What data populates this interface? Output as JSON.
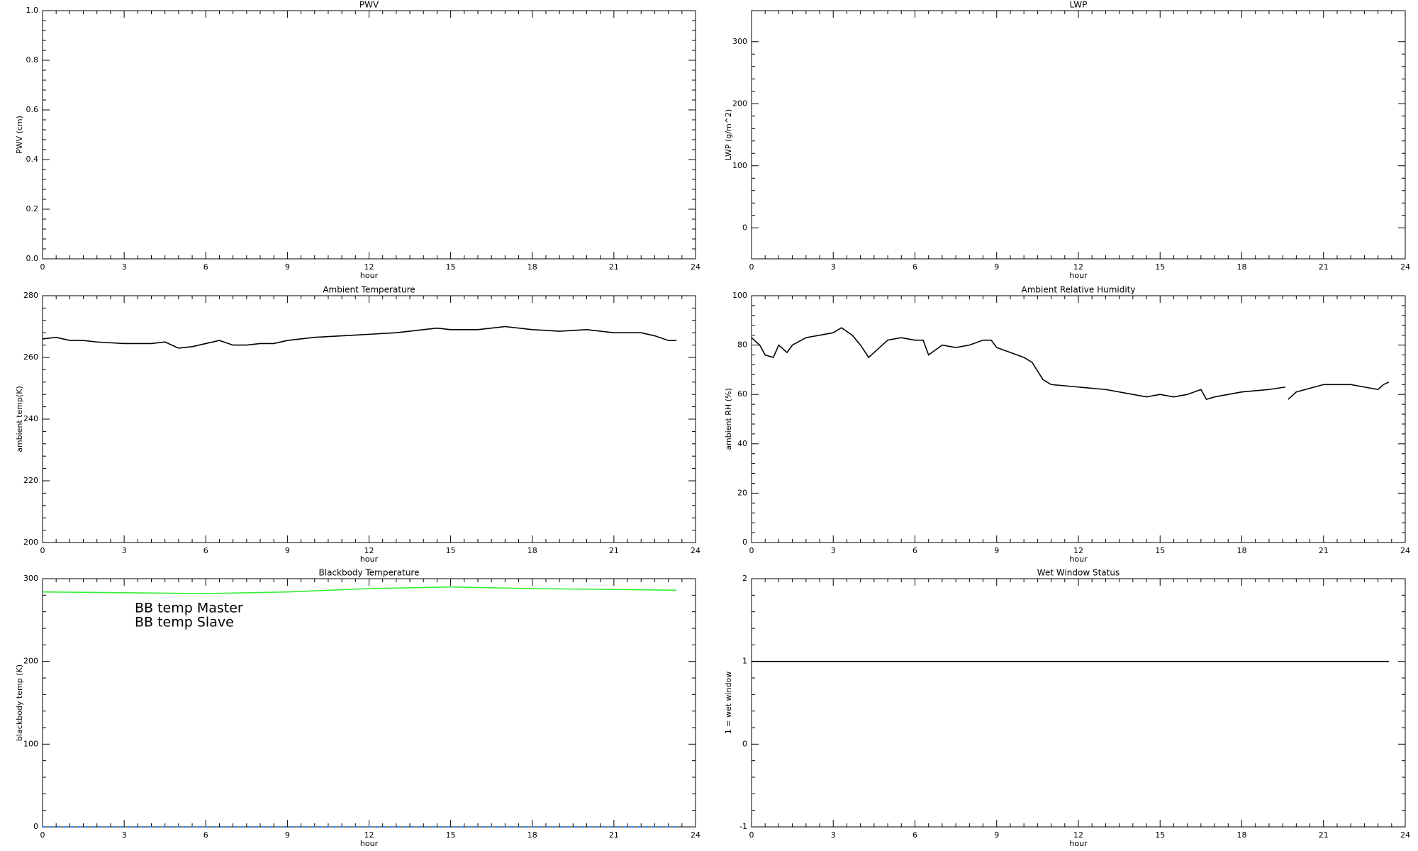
{
  "chart_data": [
    {
      "type": "line",
      "title": "PWV",
      "ylabel": "PWV (cm)",
      "xlabel": "hour",
      "xlim": [
        0,
        24
      ],
      "xticks": [
        0,
        3,
        6,
        9,
        12,
        15,
        18,
        21,
        24
      ],
      "ylim": [
        0,
        1
      ],
      "yticks": [
        {
          "value": 0,
          "label": "0.0"
        },
        0.2,
        0.4,
        0.6,
        0.8,
        {
          "value": 1,
          "label": "1.0"
        }
      ]
    },
    {
      "type": "line",
      "title": "LWP",
      "ylabel": "LWP (g/m^2)",
      "xlabel": "hour",
      "xlim": [
        0,
        24
      ],
      "xticks": [
        0,
        3,
        6,
        9,
        12,
        15,
        18,
        21,
        24
      ],
      "ylim": [
        -50,
        350
      ],
      "yticks": [
        0,
        100,
        200,
        300
      ]
    },
    {
      "type": "line",
      "title": "Ambient Temperature",
      "ylabel": "ambient temp(K)",
      "xlabel": "hour",
      "xlim": [
        0,
        24
      ],
      "xticks": [
        0,
        3,
        6,
        9,
        12,
        15,
        18,
        21,
        24
      ],
      "ylim": [
        200,
        280
      ],
      "yticks": [
        200,
        220,
        240,
        260,
        280
      ],
      "x": [
        0,
        0.5,
        1,
        1.5,
        2,
        3,
        4,
        4.5,
        5,
        5.5,
        6,
        6.5,
        7,
        7.5,
        8,
        8.5,
        9,
        10,
        11,
        12,
        13,
        14,
        14.5,
        15,
        16,
        16.5,
        17,
        18,
        19,
        20,
        21,
        22,
        22.5,
        23,
        23.3
      ],
      "series": [
        {
          "color": "#000000",
          "values": [
            266,
            266.5,
            265.5,
            265.5,
            265,
            264.5,
            264.5,
            265,
            263,
            263.5,
            264.5,
            265.5,
            264,
            264,
            264.5,
            264.5,
            265.5,
            266.5,
            267,
            267.5,
            268,
            269,
            269.5,
            269,
            269,
            269.5,
            270,
            269,
            268.5,
            269,
            268,
            268,
            267,
            265.5,
            265.5
          ]
        }
      ]
    },
    {
      "type": "line",
      "title": "Ambient Relative Humidity",
      "ylabel": "ambient RH (%)",
      "xlabel": "hour",
      "xlim": [
        0,
        24
      ],
      "xticks": [
        0,
        3,
        6,
        9,
        12,
        15,
        18,
        21,
        24
      ],
      "ylim": [
        0,
        100
      ],
      "yticks": [
        0,
        20,
        40,
        60,
        80,
        100
      ],
      "x": [
        0,
        0.3,
        0.5,
        0.8,
        1,
        1.3,
        1.5,
        2,
        3,
        3.3,
        3.7,
        4,
        4.3,
        4.7,
        5,
        5.5,
        6,
        6.3,
        6.5,
        7,
        7.5,
        8,
        8.5,
        8.8,
        9,
        9.5,
        10,
        10.3,
        10.7,
        11,
        12,
        13,
        14,
        14.5,
        15,
        15.5,
        16,
        16.5,
        16.7,
        17,
        18,
        19,
        19.6,
        19.65,
        19.7,
        20,
        21,
        22,
        22.5,
        23,
        23.2,
        23.4
      ],
      "series": [
        {
          "color": "#000000",
          "values": [
            83,
            80,
            76,
            75,
            80,
            77,
            80,
            83,
            85,
            87,
            84,
            80,
            75,
            79,
            82,
            83,
            82,
            82,
            76,
            80,
            79,
            80,
            82,
            82,
            79,
            77,
            75,
            73,
            66,
            64,
            63,
            62,
            60,
            59,
            60,
            59,
            60,
            62,
            58,
            59,
            61,
            62,
            63,
            null,
            58,
            61,
            64,
            64,
            63,
            62,
            64,
            65
          ]
        }
      ]
    },
    {
      "type": "line",
      "title": "Blackbody Temperature",
      "ylabel": "blackbody temp (K)",
      "xlabel": "hour",
      "xlim": [
        0,
        24
      ],
      "xticks": [
        0,
        3,
        6,
        9,
        12,
        15,
        18,
        21,
        24
      ],
      "ylim": [
        0,
        300
      ],
      "yticks": [
        0,
        100,
        200,
        300
      ],
      "x": [
        0,
        3,
        6,
        9,
        12,
        15,
        18,
        21,
        23.3
      ],
      "series": [
        {
          "name": "BB temp Master",
          "color": "#3388ff",
          "dashed": true,
          "values": [
            0,
            0,
            0,
            0,
            0,
            0,
            0,
            0,
            0
          ]
        },
        {
          "name": "BB temp Slave",
          "color": "#33ee33",
          "values": [
            284,
            283,
            282,
            284,
            288,
            290,
            288,
            287,
            286
          ]
        }
      ]
    },
    {
      "type": "line",
      "title": "Wet Window Status",
      "ylabel": "1 = wet window",
      "xlabel": "hour",
      "xlim": [
        0,
        24
      ],
      "xticks": [
        0,
        3,
        6,
        9,
        12,
        15,
        18,
        21,
        24
      ],
      "ylim": [
        -1,
        2
      ],
      "yticks": [
        -1,
        0,
        1,
        2
      ],
      "x": [
        0,
        23.4
      ],
      "series": [
        {
          "color": "#000000",
          "values": [
            1,
            1
          ]
        }
      ]
    }
  ]
}
